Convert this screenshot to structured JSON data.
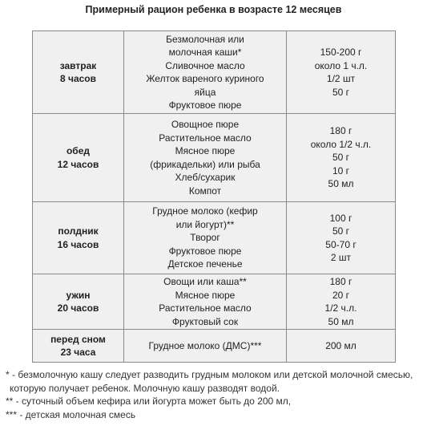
{
  "title": "Примерный рацион ребенка в возрасте 12 месяцев",
  "table": {
    "rows": [
      {
        "meal": [
          "завтрак",
          "8 часов"
        ],
        "foods": [
          "Безмолочная или",
          "молочная каши*",
          "Сливочное масло",
          "Желток вареного куриного",
          "яйца",
          "Фруктовое пюре"
        ],
        "amounts": [
          "150-200 г",
          "около 1 ч.л.",
          "1/2 шт",
          "50 г"
        ]
      },
      {
        "meal": [
          "обед",
          "12 часов"
        ],
        "foods": [
          "Овощное пюре",
          "Растительное масло",
          "Мясное пюре",
          "(фрикадельки) или рыба",
          "Хлеб/сухарик",
          "Компот"
        ],
        "amounts": [
          "180 г",
          "около 1/2 ч.л.",
          "50 г",
          "10 г",
          "50 мл"
        ]
      },
      {
        "meal": [
          "полдник",
          "16 часов"
        ],
        "foods": [
          "Грудное молоко (кефир",
          "или йогурт)**",
          "Творог",
          "Фруктовое пюре",
          "Детское печенье"
        ],
        "amounts": [
          "100 г",
          "50 г",
          "50-70 г",
          "2 шт"
        ]
      },
      {
        "meal": [
          "ужин",
          "20 часов"
        ],
        "foods": [
          "Овощи или каша**",
          "Мясное пюре",
          "Растительное масло",
          "Фруктовый сок"
        ],
        "amounts": [
          "180 г",
          "20 г",
          "1/2 ч.л.",
          "50 мл"
        ]
      },
      {
        "meal": [
          "перед сном",
          "23 часа"
        ],
        "foods": [
          "Грудное молоко (ДМС)***"
        ],
        "amounts": [
          "200 мл"
        ]
      }
    ]
  },
  "footnotes": [
    "* - безмолочную кашу следует разводить грудным молоком или детской молочной смесью,",
    "которую получает ребенок. Молочную кашу разводят водой.",
    "** - суточный объем кефира или йогурта может быть до 200 мл,",
    "*** - детская молочная смесь"
  ]
}
